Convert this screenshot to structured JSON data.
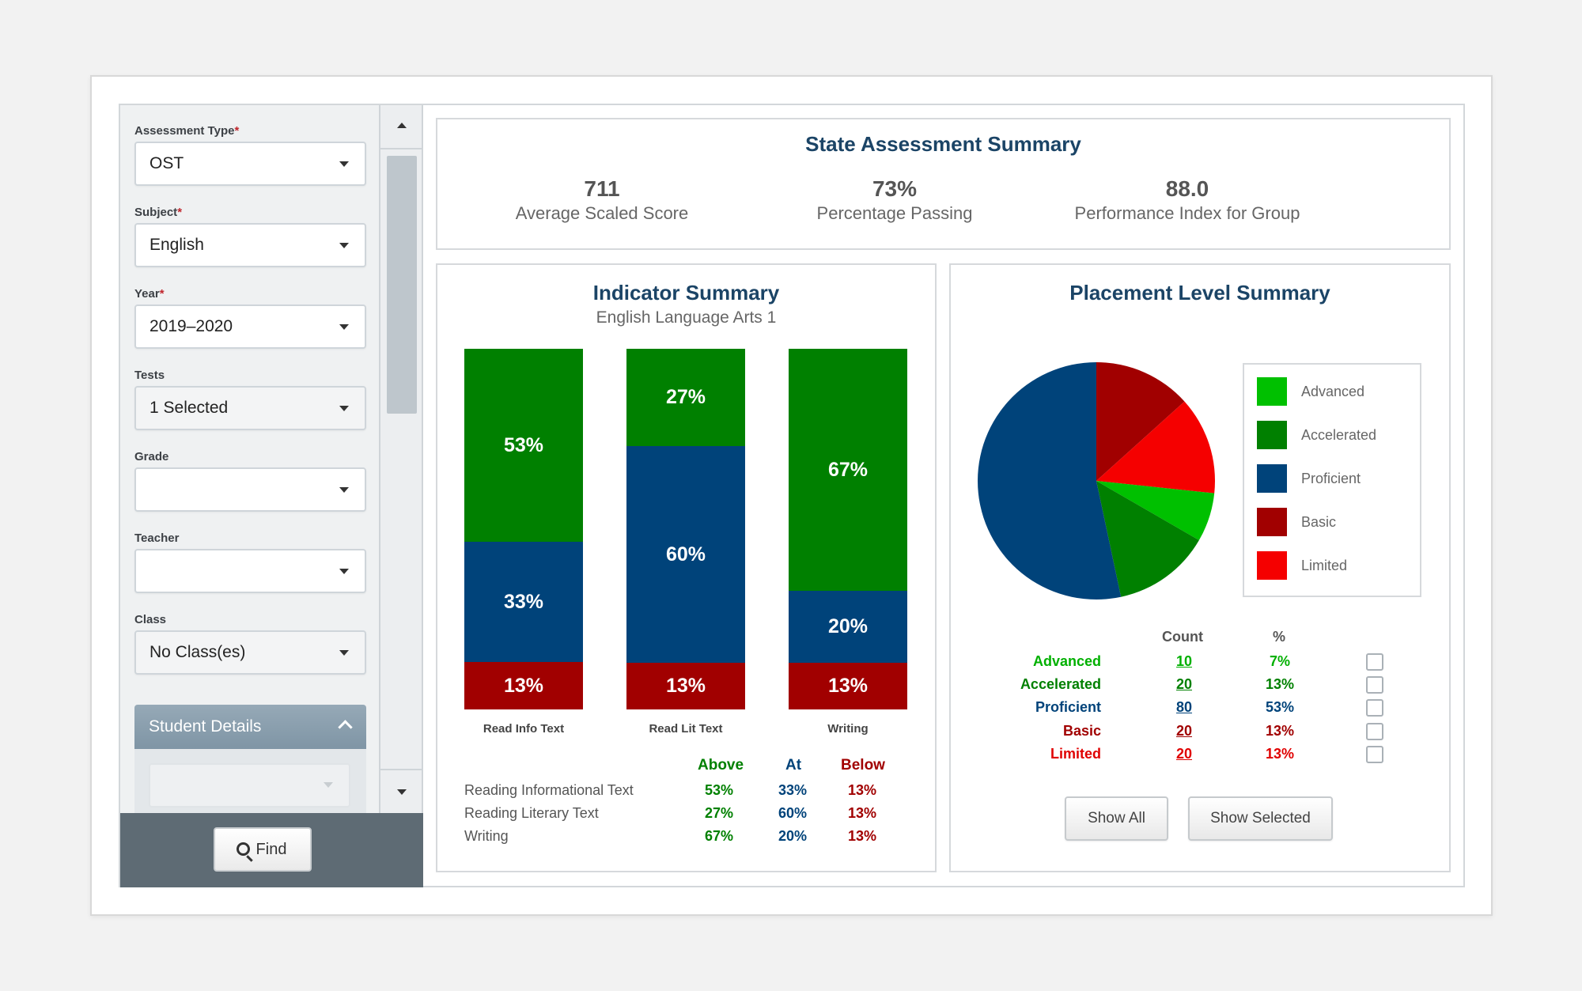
{
  "filters": {
    "assessment_type": {
      "label": "Assessment Type",
      "required": "*",
      "value": "OST"
    },
    "subject": {
      "label": "Subject",
      "required": "*",
      "value": "English"
    },
    "year": {
      "label": "Year",
      "required": "*",
      "value": "2019–2020"
    },
    "tests": {
      "label": "Tests",
      "value": "1 Selected"
    },
    "grade": {
      "label": "Grade",
      "value": ""
    },
    "teacher": {
      "label": "Teacher",
      "value": ""
    },
    "class": {
      "label": "Class",
      "value": "No Class(es)"
    },
    "student_details": {
      "label": "Student Details"
    },
    "find_label": "Find"
  },
  "summary": {
    "title": "State Assessment Summary",
    "stats": [
      {
        "value": "711",
        "label": "Average Scaled Score"
      },
      {
        "value": "73%",
        "label": "Percentage Passing"
      },
      {
        "value": "88.0",
        "label": "Performance Index for Group"
      }
    ]
  },
  "indicator": {
    "title": "Indicator Summary",
    "subtitle": "English Language Arts 1",
    "table_headers": [
      "Above",
      "At",
      "Below"
    ],
    "rows": [
      {
        "name": "Reading Informational Text",
        "above": "53%",
        "at": "33%",
        "below": "13%"
      },
      {
        "name": "Reading Literary Text",
        "above": "27%",
        "at": "60%",
        "below": "13%"
      },
      {
        "name": "Writing",
        "above": "67%",
        "at": "20%",
        "below": "13%"
      }
    ]
  },
  "placement": {
    "title": "Placement Level Summary",
    "legend": [
      "Advanced",
      "Accelerated",
      "Proficient",
      "Basic",
      "Limited"
    ],
    "count_header": "Count",
    "pct_header": "%",
    "rows": [
      {
        "label": "Advanced",
        "count": "10",
        "pct": "7%"
      },
      {
        "label": "Accelerated",
        "count": "20",
        "pct": "13%"
      },
      {
        "label": "Proficient",
        "count": "80",
        "pct": "53%"
      },
      {
        "label": "Basic",
        "count": "20",
        "pct": "13%"
      },
      {
        "label": "Limited",
        "count": "20",
        "pct": "13%"
      }
    ],
    "show_all_label": "Show All",
    "show_selected_label": "Show Selected"
  },
  "colors": {
    "above": "#008000",
    "at": "#00437a",
    "below": "#a10000",
    "advanced": "#00c000",
    "accelerated": "#008000",
    "proficient": "#00437a",
    "basic": "#a10000",
    "limited": "#f50000",
    "title": "#1b4466"
  },
  "chart_data": [
    {
      "type": "bar",
      "stacked": true,
      "categories": [
        "Read Info Text",
        "Read Lit Text",
        "Writing"
      ],
      "series": [
        {
          "name": "Below",
          "values": [
            13,
            13,
            13
          ]
        },
        {
          "name": "At",
          "values": [
            33,
            60,
            20
          ]
        },
        {
          "name": "Above",
          "values": [
            53,
            27,
            67
          ]
        }
      ],
      "title": "Indicator Summary",
      "subtitle": "English Language Arts 1",
      "ylim": [
        0,
        100
      ],
      "grid": false
    },
    {
      "type": "pie",
      "title": "Placement Level Summary",
      "labels": [
        "Advanced",
        "Accelerated",
        "Proficient",
        "Basic",
        "Limited"
      ],
      "values": [
        10,
        20,
        80,
        20,
        20
      ],
      "legend": "right"
    }
  ]
}
